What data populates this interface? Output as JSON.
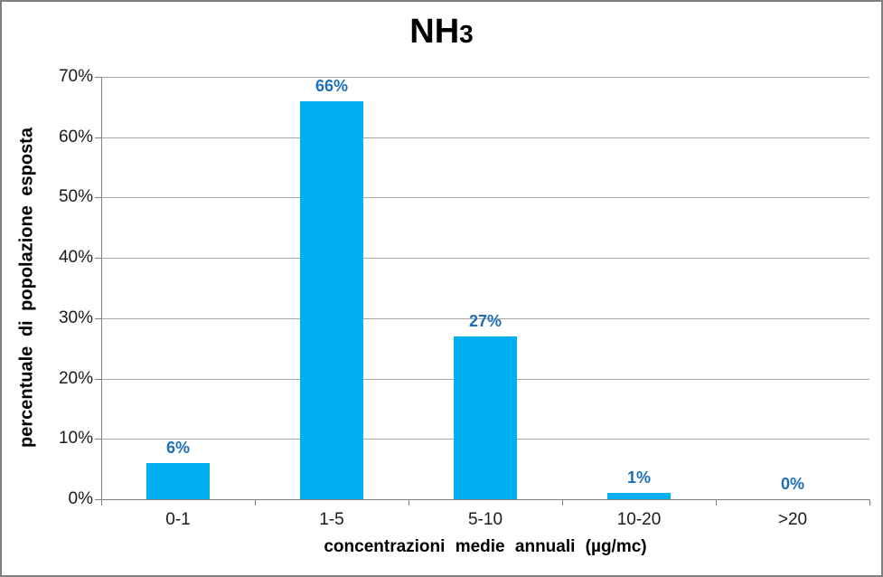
{
  "chart_data": {
    "type": "bar",
    "title": "NH3",
    "title_main": "NH",
    "title_subscript": "3",
    "categories": [
      "0-1",
      "1-5",
      "5-10",
      "10-20",
      ">20"
    ],
    "values": [
      6,
      66,
      27,
      1,
      0
    ],
    "data_labels": [
      "6%",
      "66%",
      "27%",
      "1%",
      "0%"
    ],
    "xlabel": "concentrazioni medie annuali (µg/mc)",
    "ylabel": "percentuale di popolazione esposta",
    "ylim": [
      0,
      70
    ],
    "ytick_step": 10,
    "ytick_labels": [
      "0%",
      "10%",
      "20%",
      "30%",
      "40%",
      "50%",
      "60%",
      "70%"
    ],
    "grid": true,
    "legend_position": "none",
    "bar_color": "#00B0F0",
    "data_label_color": "#1E6FB5",
    "gridline_color": "#A6A6A6",
    "axis_color": "#808080",
    "tick_label_color": "#1a1a1a",
    "frame_border_color": "#7F7F7F"
  }
}
